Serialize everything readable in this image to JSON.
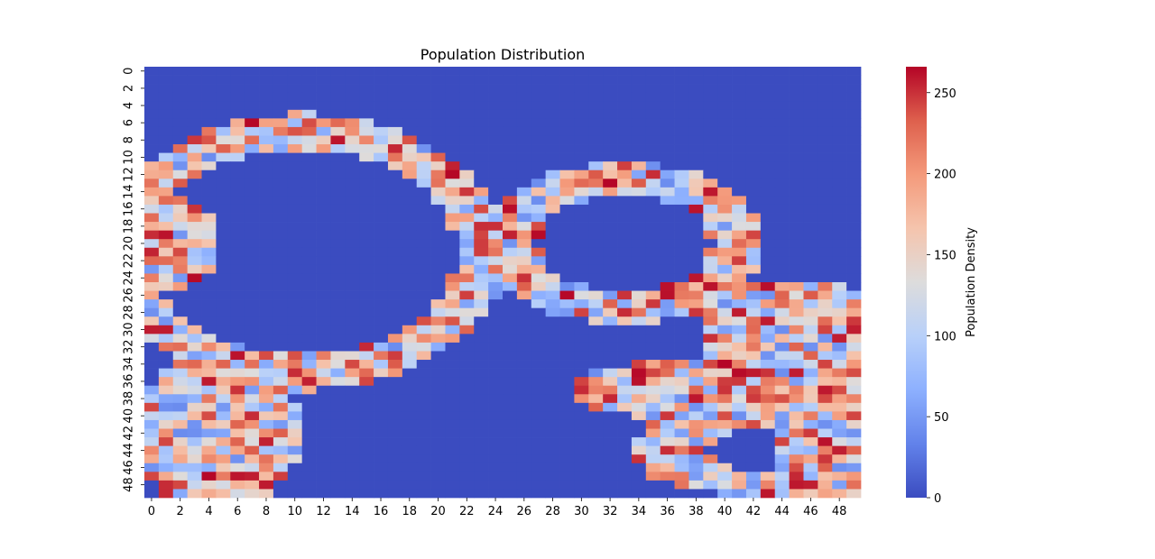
{
  "chart_data": {
    "type": "heatmap",
    "title": "Population Distribution",
    "xlabel": "",
    "ylabel": "",
    "rows": 50,
    "cols": 50,
    "x_tick_labels": [
      "0",
      "2",
      "4",
      "6",
      "8",
      "10",
      "12",
      "14",
      "16",
      "18",
      "20",
      "22",
      "24",
      "26",
      "28",
      "30",
      "32",
      "34",
      "36",
      "38",
      "40",
      "42",
      "44",
      "46",
      "48"
    ],
    "y_tick_labels": [
      "0",
      "2",
      "4",
      "6",
      "8",
      "10",
      "12",
      "14",
      "16",
      "18",
      "20",
      "22",
      "24",
      "26",
      "28",
      "30",
      "32",
      "34",
      "36",
      "38",
      "40",
      "42",
      "44",
      "46",
      "48"
    ],
    "colorbar": {
      "label": "Population Density",
      "range": [
        0,
        266
      ],
      "ticks": [
        "0",
        "50",
        "100",
        "150",
        "200",
        "250"
      ],
      "tick_values": [
        0,
        50,
        100,
        150,
        200,
        250
      ],
      "colormap": "coolwarm"
    },
    "background_value": 0,
    "structures": [
      {
        "shape": "ring",
        "center": [
          10.5,
          21
        ],
        "radius_x": 12.5,
        "radius_y": 14,
        "thickness": 1.8
      },
      {
        "shape": "ring",
        "center": [
          33,
          20
        ],
        "radius_x": 8,
        "radius_y": 7.5,
        "thickness": 1.8
      },
      {
        "shape": "ring",
        "center": [
          44,
          44
        ],
        "radius_x": 8,
        "radius_y": 4.2,
        "thickness": 1.4
      },
      {
        "shape": "blob",
        "center": [
          1.5,
          20
        ],
        "radius_x": 3.2,
        "radius_y": 5.2
      },
      {
        "shape": "blob",
        "center": [
          4.5,
          42
        ],
        "radius_x": 6,
        "radius_y": 9
      },
      {
        "shape": "blob",
        "center": [
          45,
          32
        ],
        "radius_x": 7,
        "radius_y": 8
      },
      {
        "shape": "blob",
        "center": [
          47,
          44
        ],
        "radius_x": 4,
        "radius_y": 7
      },
      {
        "shape": "blob",
        "center": [
          39,
          37
        ],
        "radius_x": 10,
        "radius_y": 3.5
      }
    ],
    "value_range_in_structures": [
      40,
      266
    ]
  }
}
